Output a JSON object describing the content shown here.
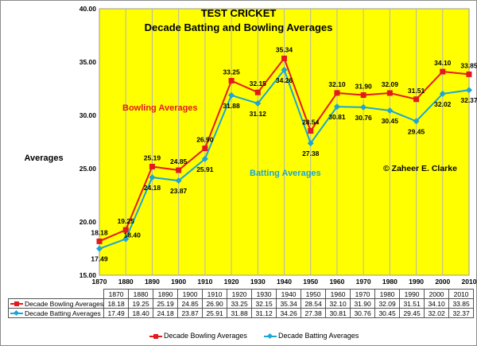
{
  "chart_data": {
    "type": "line",
    "title": "TEST CRICKET",
    "subtitle": "Decade Batting and Bowling Averages",
    "ylabel": "Averages",
    "xlabel": "",
    "ylim": [
      15,
      40
    ],
    "yticks": [
      "15.00",
      "20.00",
      "25.00",
      "30.00",
      "35.00",
      "40.00"
    ],
    "x": [
      "1870",
      "1880",
      "1890",
      "1900",
      "1910",
      "1920",
      "1930",
      "1940",
      "1950",
      "1960",
      "1970",
      "1980",
      "1990",
      "2000",
      "2010"
    ],
    "series": [
      {
        "name": "Decade Bowling Averages",
        "color": "#e31a1c",
        "marker": "square",
        "values": [
          18.18,
          19.25,
          25.19,
          24.85,
          26.9,
          33.25,
          32.15,
          35.34,
          28.54,
          32.1,
          31.9,
          32.09,
          31.51,
          34.1,
          33.85
        ],
        "labels": [
          "18.18",
          "19.25",
          "25.19",
          "24.85",
          "26.90",
          "33.25",
          "32.15",
          "35.34",
          "28.54",
          "32.10",
          "31.90",
          "32.09",
          "31.51",
          "34.10",
          "33.85"
        ]
      },
      {
        "name": "Decade Batting Averages",
        "color": "#1ba5d8",
        "marker": "diamond",
        "values": [
          17.49,
          18.4,
          24.18,
          23.87,
          25.91,
          31.88,
          31.12,
          34.26,
          27.38,
          30.81,
          30.76,
          30.45,
          29.45,
          32.02,
          32.37
        ],
        "labels": [
          "17.49",
          "18.40",
          "24.18",
          "23.87",
          "25.91",
          "31.88",
          "31.12",
          "34.26",
          "27.38",
          "30.81",
          "30.76",
          "30.45",
          "29.45",
          "32.02",
          "32.37"
        ]
      }
    ],
    "annotations": [
      {
        "text": "Bowling Averages",
        "color": "#e31a1c"
      },
      {
        "text": "Batting Averages",
        "color": "#1ba5d8"
      },
      {
        "text": "© Zaheer E. Clarke",
        "color": "#000000"
      }
    ],
    "grid": true,
    "plot_background": "#ffff00",
    "legend": "bottom",
    "data_table": true
  }
}
